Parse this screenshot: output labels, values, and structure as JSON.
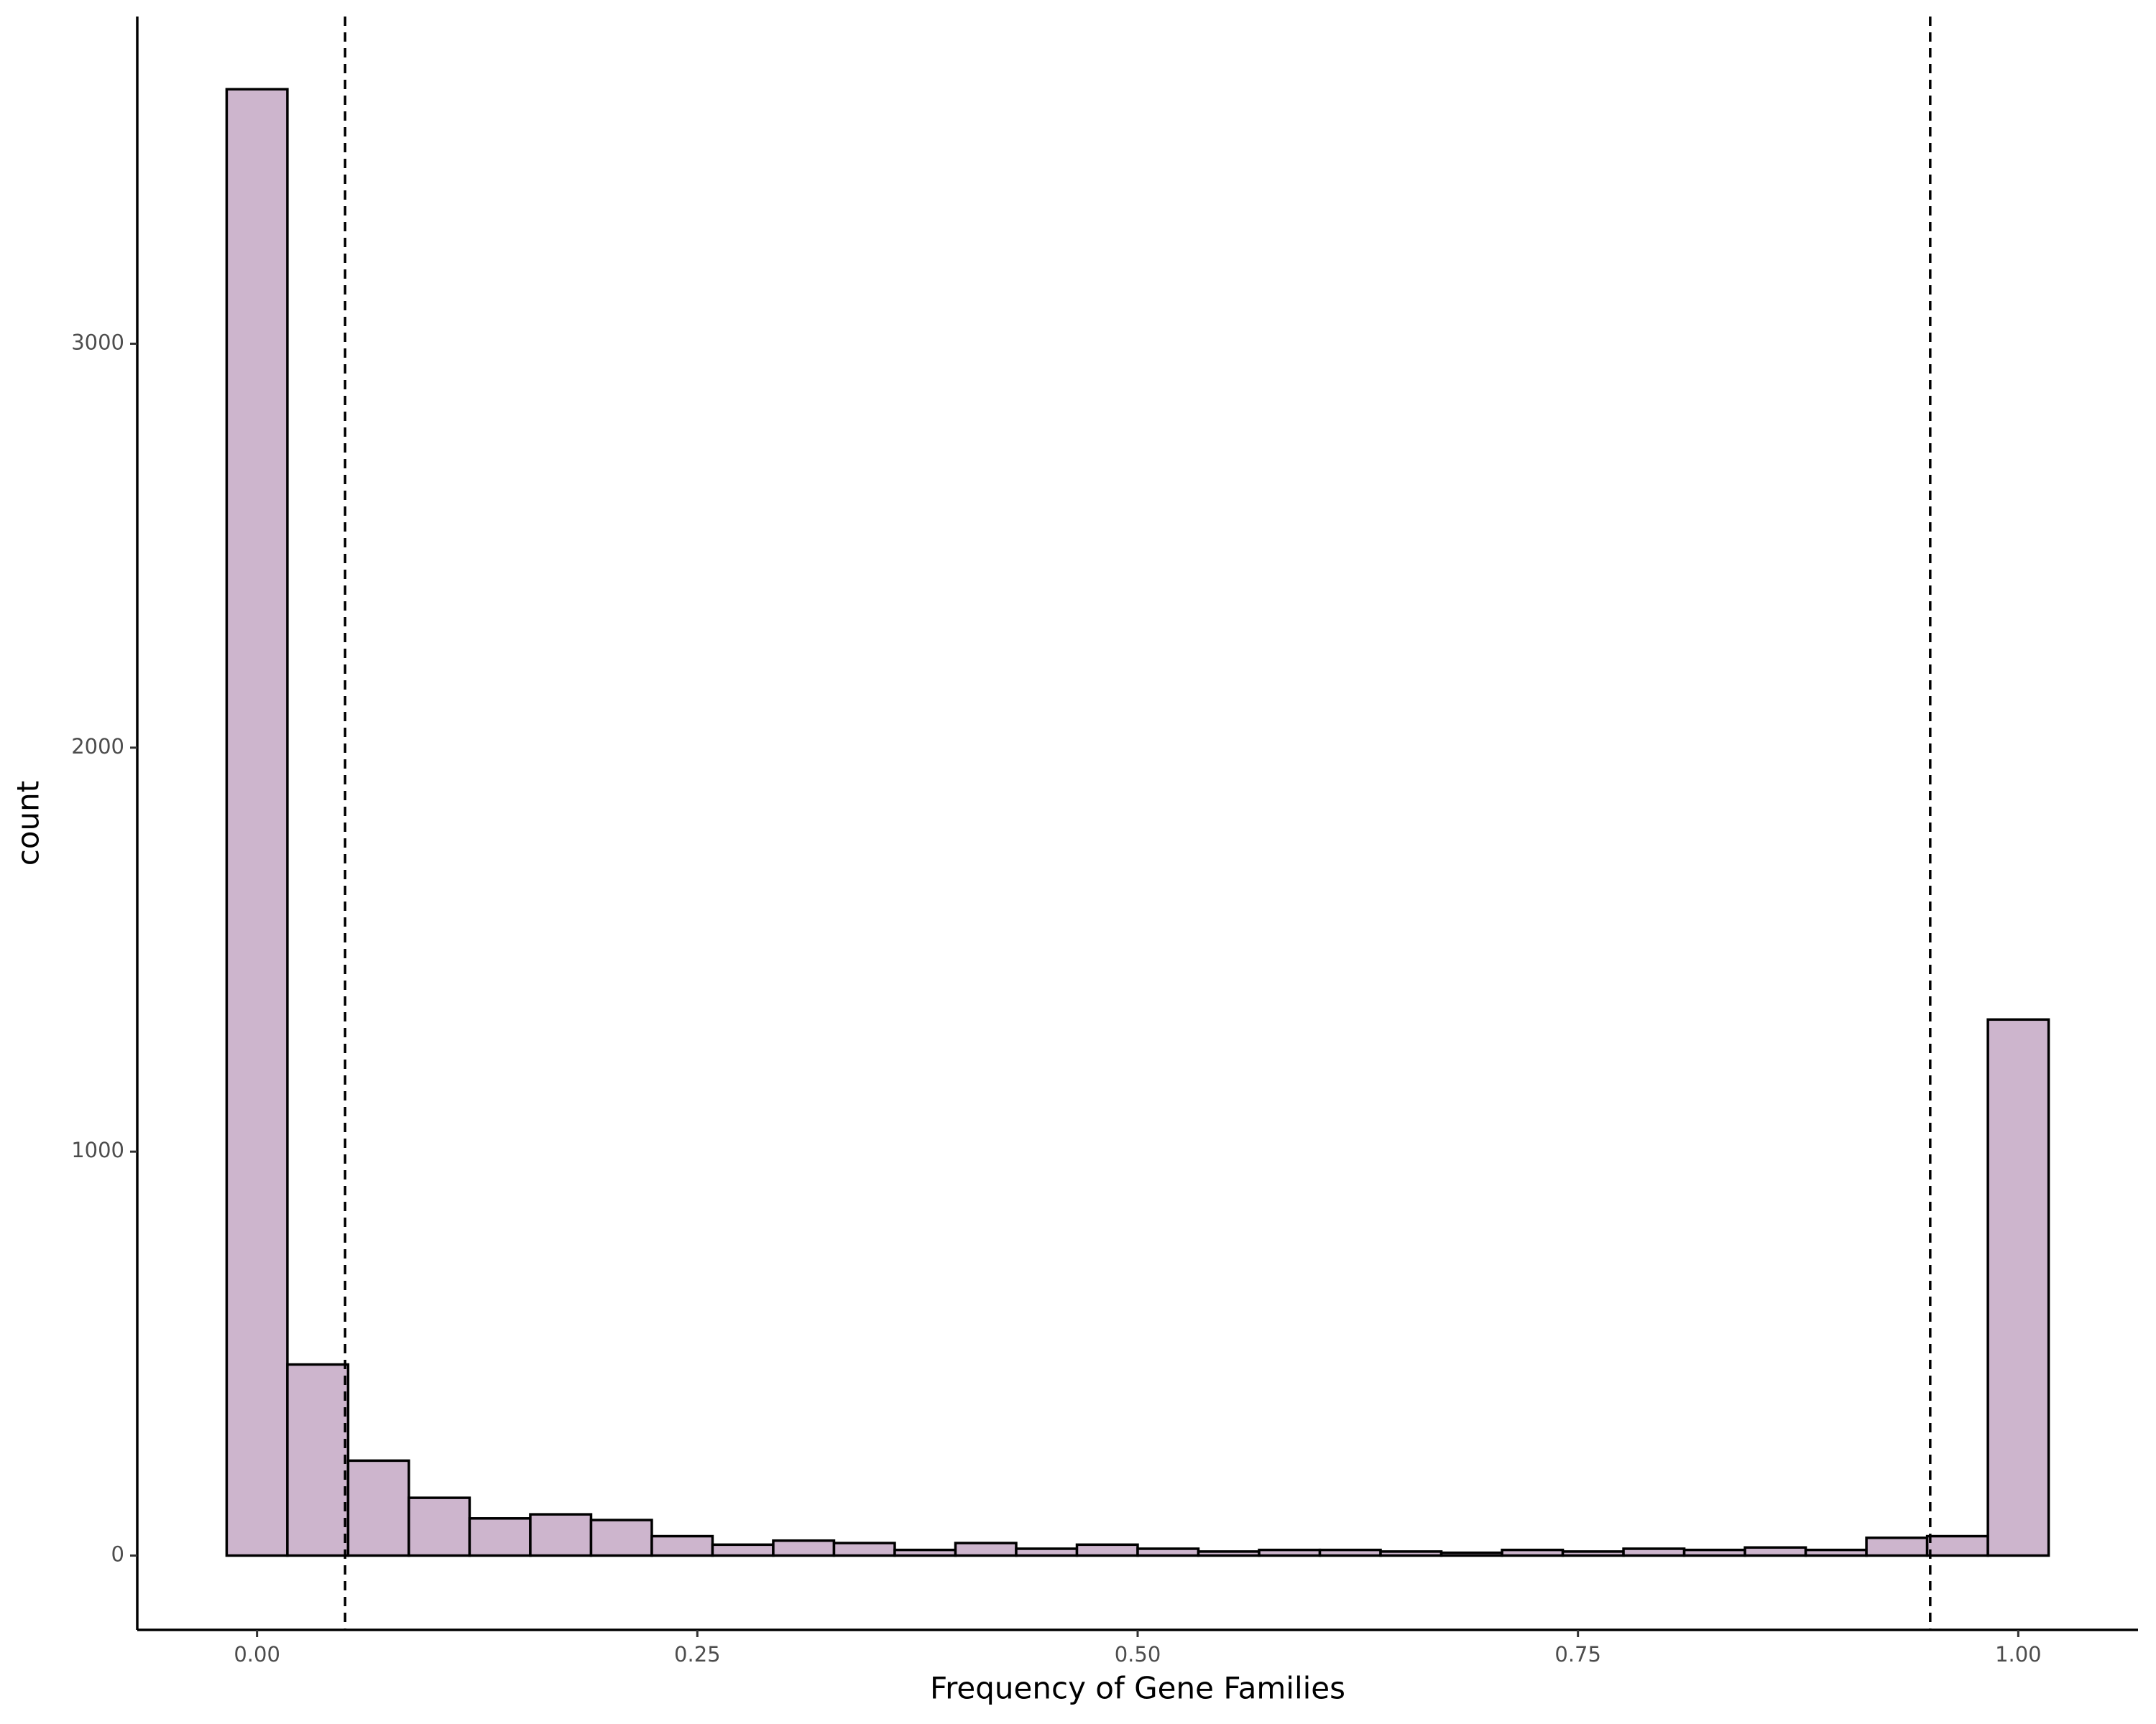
{
  "chart_data": {
    "type": "histogram",
    "x_label": "Frequency of Gene Families",
    "y_label": "count",
    "bins": [
      -0.01724,
      0.01724,
      0.05172,
      0.08621,
      0.12069,
      0.15517,
      0.18966,
      0.22414,
      0.25862,
      0.2931,
      0.32759,
      0.36207,
      0.39655,
      0.43103,
      0.46552,
      0.5,
      0.53448,
      0.56897,
      0.60345,
      0.63793,
      0.67241,
      0.7069,
      0.74138,
      0.77586,
      0.81034,
      0.84483,
      0.87931,
      0.91379,
      0.94828,
      0.98276,
      1.01724
    ],
    "values": [
      3630,
      473,
      235,
      143,
      92,
      102,
      88,
      48,
      27,
      37,
      31,
      14,
      31,
      17,
      27,
      17,
      10,
      14,
      14,
      10,
      7,
      14,
      10,
      17,
      14,
      20,
      14,
      44,
      48,
      1327
    ],
    "color": "#cdb5cd",
    "edge_color": "#000000",
    "vlines": [
      0.05,
      0.95
    ],
    "xlim": [
      -0.068,
      1.068
    ],
    "ylim": [
      -184,
      3810
    ],
    "xticks": [
      {
        "value": 0,
        "label": "0.00"
      },
      {
        "value": 0.25,
        "label": "0.25"
      },
      {
        "value": 0.5,
        "label": "0.50"
      },
      {
        "value": 0.75,
        "label": "0.75"
      },
      {
        "value": 1,
        "label": "1.00"
      }
    ],
    "yticks": [
      0,
      1000,
      2000,
      3000
    ]
  }
}
